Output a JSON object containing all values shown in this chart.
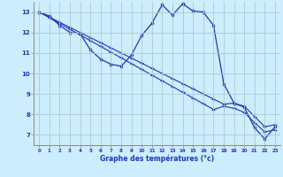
{
  "title": "",
  "xlabel": "Graphe des températures (°c)",
  "ylabel": "",
  "background_color": "#cceeff",
  "grid_color": "#aacccc",
  "line_color": "#2233bb",
  "xlim": [
    -0.5,
    23.5
  ],
  "ylim": [
    6.5,
    13.5
  ],
  "yticks": [
    7,
    8,
    9,
    10,
    11,
    12,
    13
  ],
  "xticks": [
    0,
    1,
    2,
    3,
    4,
    5,
    6,
    7,
    8,
    9,
    10,
    11,
    12,
    13,
    14,
    15,
    16,
    17,
    18,
    19,
    20,
    21,
    22,
    23
  ],
  "hours": [
    0,
    1,
    2,
    3,
    4,
    5,
    6,
    7,
    8,
    9,
    10,
    11,
    12,
    13,
    14,
    15,
    16,
    17,
    18,
    19,
    20,
    21,
    22,
    23
  ],
  "line_wavy": [
    13.0,
    12.8,
    12.35,
    12.0,
    11.95,
    11.15,
    10.7,
    10.45,
    10.35,
    10.9,
    11.85,
    12.45,
    13.35,
    12.85,
    13.4,
    13.05,
    13.0,
    12.35,
    9.5,
    8.55,
    8.35,
    7.35,
    6.8,
    7.4
  ],
  "line_reg1": [
    13.0,
    12.75,
    12.5,
    12.25,
    12.0,
    11.75,
    11.5,
    11.25,
    11.0,
    10.75,
    10.5,
    10.25,
    10.0,
    9.75,
    9.5,
    9.25,
    9.0,
    8.75,
    8.5,
    8.55,
    8.4,
    7.9,
    7.4,
    7.5
  ],
  "line_reg2": [
    13.0,
    12.72,
    12.44,
    12.16,
    11.88,
    11.6,
    11.32,
    11.04,
    10.76,
    10.48,
    10.2,
    9.92,
    9.64,
    9.36,
    9.08,
    8.8,
    8.52,
    8.24,
    8.4,
    8.3,
    8.1,
    7.6,
    7.15,
    7.25
  ]
}
